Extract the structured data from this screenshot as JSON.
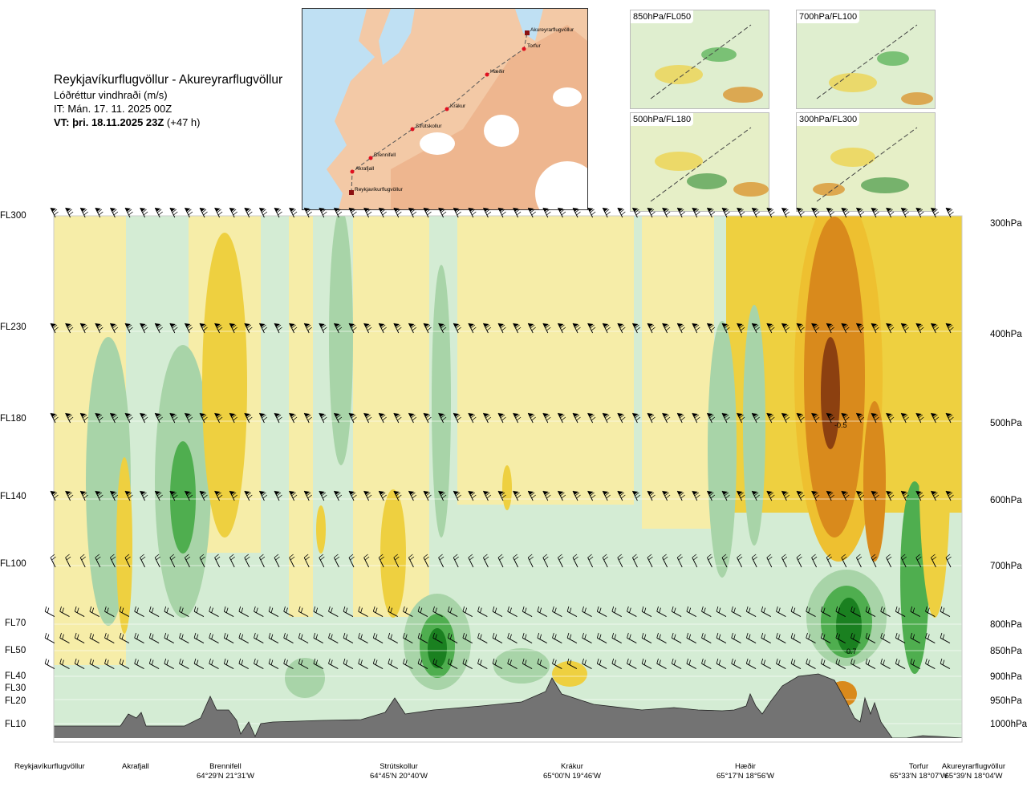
{
  "header": {
    "route": "Reykjavíkurflugvöllur - Akureyrarflugvöllur",
    "quantity": "Lóðréttur vindhraði (m/s)",
    "it": "IT: Mán. 17. 11. 2025 00Z",
    "vt_bold": "VT: þri. 18.11.2025 23Z",
    "vt_rest": " (+47 h)"
  },
  "map": {
    "points": [
      {
        "name": "Akureyrarflugvöllur",
        "kind": "airport"
      },
      {
        "name": "Torfur",
        "kind": "point"
      },
      {
        "name": "Hæðir",
        "kind": "point"
      },
      {
        "name": "Krákur",
        "kind": "point"
      },
      {
        "name": "Strútskollur",
        "kind": "point"
      },
      {
        "name": "Brennifell",
        "kind": "point"
      },
      {
        "name": "Akrafjall",
        "kind": "point"
      },
      {
        "name": "Reykjavíkurflugvöllur",
        "kind": "airport"
      }
    ]
  },
  "thumbnails": [
    {
      "label": "850hPa/FL050"
    },
    {
      "label": "700hPa/FL100"
    },
    {
      "label": "500hPa/FL180"
    },
    {
      "label": "300hPa/FL300"
    }
  ],
  "chart_data": {
    "type": "heatmap",
    "title": "Lóðréttur vindhraði (m/s)",
    "y_axis_left_flight_levels": [
      "FL300",
      "FL230",
      "FL180",
      "FL140",
      "FL100",
      "FL70",
      "FL50",
      "FL40",
      "FL30",
      "FL20",
      "FL10"
    ],
    "y_axis_right_pressure_levels": [
      "300hPa",
      "400hPa",
      "500hPa",
      "600hPa",
      "700hPa",
      "800hPa",
      "850hPa",
      "900hPa",
      "950hPa",
      "1000hPa"
    ],
    "pressure_levels_hpa": [
      300,
      400,
      500,
      600,
      700,
      800,
      850,
      900,
      950,
      1000
    ],
    "wind_barb_levels_hpa": [
      300,
      400,
      500,
      600,
      700,
      800,
      850,
      900
    ],
    "x_locations": [
      {
        "name": "Reykjavíkurflugvöllur",
        "coord": ""
      },
      {
        "name": "Akrafjall",
        "coord": ""
      },
      {
        "name": "Brennifell",
        "coord": "64°29'N 21°31'W"
      },
      {
        "name": "Strútskollur",
        "coord": "64°45'N 20°40'W"
      },
      {
        "name": "Krákur",
        "coord": "65°00'N 19°46'W"
      },
      {
        "name": "Hæðir",
        "coord": "65°17'N 18°56'W"
      },
      {
        "name": "Torfur",
        "coord": "65°33'N 18°07'W"
      },
      {
        "name": "Akureyrarflugvöllur",
        "coord": "65°39'N 18°04'W"
      }
    ],
    "annotations": [
      {
        "text": "-0.5",
        "near": "Hæðir-Torfur",
        "level_hpa": 500
      },
      {
        "text": "0.7",
        "near": "Hæðir-Torfur",
        "level_hpa": 850
      }
    ],
    "colors": {
      "strong_descent": "#8c4010",
      "descent": "#d98a1c",
      "weak_descent": "#eed040",
      "very_weak_descent": "#f6eda8",
      "neutral": "#ffffff",
      "very_weak_ascent": "#d4ecd4",
      "weak_ascent": "#a8d4a8",
      "ascent": "#4fae4f",
      "strong_ascent": "#1a8020",
      "terrain": "#737373"
    }
  }
}
